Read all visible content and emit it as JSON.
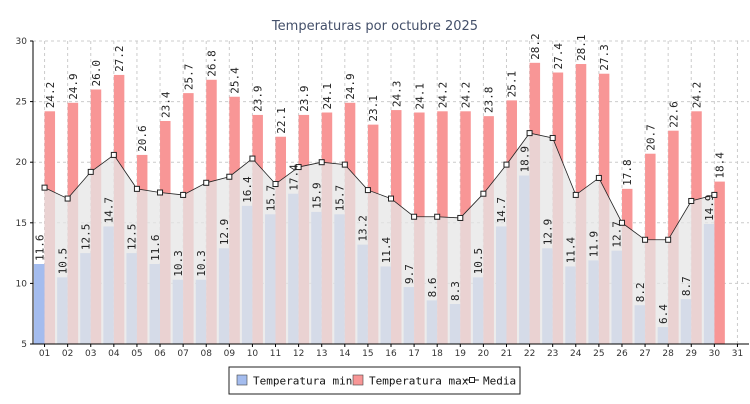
{
  "chart_data": {
    "type": "bar",
    "title": "Temperaturas por octubre 2025",
    "xlabel": "",
    "ylabel": "",
    "ylim": [
      5,
      30
    ],
    "yticks": [
      5,
      10,
      15,
      20,
      25,
      30
    ],
    "grid": true,
    "legend_position": "bottom-center",
    "categories": [
      "01",
      "02",
      "03",
      "04",
      "05",
      "06",
      "07",
      "08",
      "09",
      "10",
      "11",
      "12",
      "13",
      "14",
      "15",
      "16",
      "17",
      "18",
      "19",
      "20",
      "21",
      "22",
      "23",
      "24",
      "25",
      "26",
      "27",
      "28",
      "29",
      "30",
      "31"
    ],
    "series": [
      {
        "name": "Temperatura min",
        "kind": "bar",
        "color": "#a4bcee",
        "values": [
          11.6,
          10.5,
          12.5,
          14.7,
          12.5,
          11.6,
          10.3,
          10.3,
          12.9,
          16.4,
          15.7,
          17.4,
          15.9,
          15.7,
          13.2,
          11.4,
          9.7,
          8.6,
          8.3,
          10.5,
          14.7,
          18.9,
          12.9,
          11.4,
          11.9,
          12.7,
          8.2,
          6.4,
          8.7,
          14.9,
          null
        ],
        "labels": [
          "11.6",
          "10.5",
          "12.5",
          "14.7",
          "12.5",
          "11.6",
          "10.3",
          "10.3",
          "12.9",
          "16.4",
          "15.7",
          "17.4",
          "15.9",
          "15.7",
          "13.2",
          "11.4",
          "9.7",
          "8.6",
          "8.3",
          "10.5",
          "14.7",
          "18.9",
          "12.9",
          "11.4",
          "11.9",
          "12.7",
          "8.2",
          "6.4",
          "8.7",
          "14.9",
          ""
        ]
      },
      {
        "name": "Temperatura max",
        "kind": "bar",
        "color": "#f89696",
        "values": [
          24.2,
          24.9,
          26.0,
          27.2,
          20.6,
          23.4,
          25.7,
          26.8,
          25.4,
          23.9,
          22.1,
          23.9,
          24.1,
          24.9,
          23.1,
          24.3,
          24.1,
          24.2,
          24.2,
          23.8,
          25.1,
          28.2,
          27.4,
          28.1,
          27.3,
          17.8,
          20.7,
          22.6,
          24.2,
          18.4,
          null
        ],
        "labels": [
          "24.2",
          "24.9",
          "26.0",
          "27.2",
          "20.6",
          "23.4",
          "25.7",
          "26.8",
          "25.4",
          "23.9",
          "22.1",
          "23.9",
          "24.1",
          "24.9",
          "23.1",
          "24.3",
          "24.1",
          "24.2",
          "24.2",
          "23.8",
          "25.1",
          "28.2",
          "27.4",
          "28.1",
          "27.3",
          "17.8",
          "20.7",
          "22.6",
          "24.2",
          "18.4",
          ""
        ]
      },
      {
        "name": "Media",
        "kind": "line",
        "color": "#222222",
        "fill": "#e6e6e6",
        "values": [
          17.9,
          17.0,
          19.2,
          20.6,
          17.8,
          17.5,
          17.3,
          18.3,
          18.8,
          20.3,
          18.2,
          19.6,
          20.0,
          19.8,
          17.7,
          17.0,
          15.5,
          15.5,
          15.4,
          17.4,
          19.8,
          22.4,
          22.0,
          17.3,
          18.7,
          15.0,
          13.6,
          13.6,
          16.8,
          17.3,
          null
        ]
      }
    ]
  }
}
